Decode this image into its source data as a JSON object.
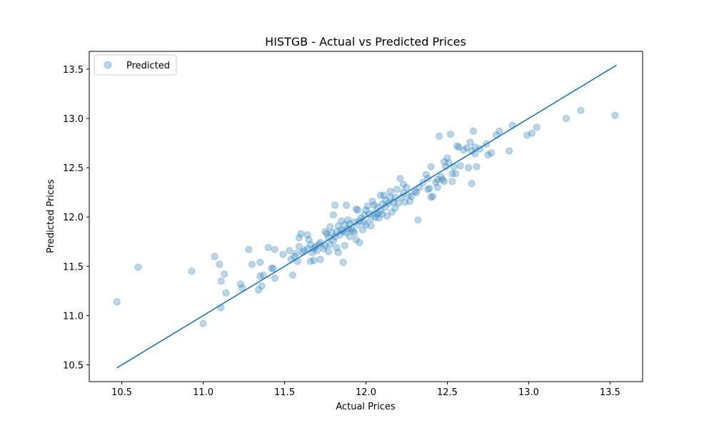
{
  "chart_data": {
    "type": "scatter",
    "title": "HISTGB - Actual vs Predicted Prices",
    "xlabel": "Actual Prices",
    "ylabel": "Predicted Prices",
    "xlim": [
      10.3,
      13.7
    ],
    "ylim": [
      10.33,
      13.68
    ],
    "xticks": [
      "10.5",
      "11.0",
      "11.5",
      "12.0",
      "12.5",
      "13.0",
      "13.5"
    ],
    "yticks": [
      "10.5",
      "11.0",
      "11.5",
      "12.0",
      "12.5",
      "13.0",
      "13.5"
    ],
    "legend": {
      "position": "top-left",
      "entries": [
        "Predicted"
      ]
    },
    "grid": false,
    "colors": {
      "points": "#1f77b4",
      "line": "#1f77b4"
    },
    "series": [
      {
        "name": "Predicted",
        "kind": "scatter",
        "points": [
          [
            10.47,
            11.14
          ],
          [
            10.6,
            11.49
          ],
          [
            10.93,
            11.45
          ],
          [
            11.0,
            10.92
          ],
          [
            11.07,
            11.6
          ],
          [
            11.1,
            11.52
          ],
          [
            11.11,
            11.35
          ],
          [
            11.13,
            11.42
          ],
          [
            11.14,
            11.23
          ],
          [
            11.11,
            11.08
          ],
          [
            11.23,
            11.32
          ],
          [
            11.24,
            11.28
          ],
          [
            11.28,
            11.67
          ],
          [
            11.3,
            11.52
          ],
          [
            11.34,
            11.26
          ],
          [
            11.35,
            11.4
          ],
          [
            11.36,
            11.3
          ],
          [
            11.37,
            11.41
          ],
          [
            11.35,
            11.54
          ],
          [
            11.4,
            11.69
          ],
          [
            11.42,
            11.48
          ],
          [
            11.43,
            11.48
          ],
          [
            11.44,
            11.67
          ],
          [
            11.44,
            11.38
          ],
          [
            11.49,
            11.62
          ],
          [
            11.53,
            11.66
          ],
          [
            11.54,
            11.57
          ],
          [
            11.55,
            11.41
          ],
          [
            11.56,
            11.6
          ],
          [
            11.57,
            11.63
          ],
          [
            11.58,
            11.55
          ],
          [
            11.59,
            11.79
          ],
          [
            11.59,
            11.7
          ],
          [
            11.6,
            11.83
          ],
          [
            11.61,
            11.64
          ],
          [
            11.62,
            11.66
          ],
          [
            11.64,
            11.68
          ],
          [
            11.64,
            11.82
          ],
          [
            11.65,
            11.77
          ],
          [
            11.66,
            11.55
          ],
          [
            11.66,
            11.72
          ],
          [
            11.67,
            11.64
          ],
          [
            11.68,
            11.68
          ],
          [
            11.68,
            11.56
          ],
          [
            11.69,
            11.7
          ],
          [
            11.7,
            11.66
          ],
          [
            11.71,
            11.72
          ],
          [
            11.72,
            11.57
          ],
          [
            11.72,
            11.74
          ],
          [
            11.74,
            11.68
          ],
          [
            11.75,
            11.71
          ],
          [
            11.75,
            11.85
          ],
          [
            11.76,
            11.83
          ],
          [
            11.77,
            11.65
          ],
          [
            11.77,
            11.79
          ],
          [
            11.78,
            11.72
          ],
          [
            11.78,
            11.9
          ],
          [
            11.79,
            11.84
          ],
          [
            11.8,
            12.02
          ],
          [
            11.8,
            11.76
          ],
          [
            11.81,
            12.12
          ],
          [
            11.81,
            11.8
          ],
          [
            11.82,
            11.85
          ],
          [
            11.82,
            11.69
          ],
          [
            11.83,
            11.91
          ],
          [
            11.83,
            11.64
          ],
          [
            11.84,
            11.82
          ],
          [
            11.85,
            11.87
          ],
          [
            11.85,
            11.96
          ],
          [
            11.86,
            11.54
          ],
          [
            11.86,
            11.85
          ],
          [
            11.87,
            11.92
          ],
          [
            11.87,
            11.71
          ],
          [
            11.88,
            12.12
          ],
          [
            11.88,
            11.84
          ],
          [
            11.89,
            11.88
          ],
          [
            11.89,
            11.97
          ],
          [
            11.9,
            11.93
          ],
          [
            11.9,
            11.8
          ],
          [
            11.91,
            11.88
          ],
          [
            11.92,
            11.86
          ],
          [
            11.93,
            11.95
          ],
          [
            11.93,
            11.84
          ],
          [
            11.94,
            12.08
          ],
          [
            11.94,
            11.77
          ],
          [
            11.95,
            11.92
          ],
          [
            11.95,
            12.07
          ],
          [
            11.96,
            11.96
          ],
          [
            11.96,
            11.74
          ],
          [
            11.97,
            11.99
          ],
          [
            11.98,
            11.87
          ],
          [
            11.99,
            12.02
          ],
          [
            11.99,
            11.95
          ],
          [
            12.0,
            12.07
          ],
          [
            12.0,
            11.92
          ],
          [
            12.01,
            12.11
          ],
          [
            12.02,
            12.03
          ],
          [
            12.03,
            11.98
          ],
          [
            12.03,
            11.91
          ],
          [
            12.04,
            12.16
          ],
          [
            12.05,
            12.04
          ],
          [
            12.05,
            12.12
          ],
          [
            12.06,
            12.0
          ],
          [
            12.07,
            12.1
          ],
          [
            12.07,
            12.03
          ],
          [
            12.08,
            11.99
          ],
          [
            12.09,
            12.06
          ],
          [
            12.09,
            12.22
          ],
          [
            12.1,
            12.13
          ],
          [
            12.1,
            12.03
          ],
          [
            12.11,
            12.22
          ],
          [
            12.12,
            12.1
          ],
          [
            12.12,
            12.17
          ],
          [
            12.13,
            12.01
          ],
          [
            12.14,
            12.14
          ],
          [
            12.15,
            12.2
          ],
          [
            12.15,
            12.26
          ],
          [
            12.16,
            12.05
          ],
          [
            12.17,
            12.15
          ],
          [
            12.18,
            12.2
          ],
          [
            12.18,
            12.09
          ],
          [
            12.19,
            12.28
          ],
          [
            12.2,
            12.14
          ],
          [
            12.21,
            12.39
          ],
          [
            12.22,
            12.2
          ],
          [
            12.23,
            12.25
          ],
          [
            12.23,
            12.33
          ],
          [
            12.24,
            12.15
          ],
          [
            12.25,
            12.3
          ],
          [
            12.26,
            12.22
          ],
          [
            12.27,
            12.16
          ],
          [
            12.28,
            12.21
          ],
          [
            12.3,
            12.26
          ],
          [
            12.31,
            12.25
          ],
          [
            12.32,
            11.97
          ],
          [
            12.33,
            12.3
          ],
          [
            12.35,
            12.35
          ],
          [
            12.37,
            12.43
          ],
          [
            12.38,
            12.39
          ],
          [
            12.38,
            12.28
          ],
          [
            12.39,
            12.29
          ],
          [
            12.4,
            12.2
          ],
          [
            12.4,
            12.51
          ],
          [
            12.41,
            12.21
          ],
          [
            12.43,
            12.35
          ],
          [
            12.44,
            12.38
          ],
          [
            12.44,
            12.3
          ],
          [
            12.45,
            12.82
          ],
          [
            12.46,
            12.41
          ],
          [
            12.47,
            12.38
          ],
          [
            12.48,
            12.56
          ],
          [
            12.48,
            12.36
          ],
          [
            12.49,
            12.51
          ],
          [
            12.5,
            12.6
          ],
          [
            12.51,
            12.55
          ],
          [
            12.52,
            12.84
          ],
          [
            12.53,
            12.44
          ],
          [
            12.53,
            12.36
          ],
          [
            12.54,
            12.51
          ],
          [
            12.55,
            12.44
          ],
          [
            12.56,
            12.72
          ],
          [
            12.57,
            12.71
          ],
          [
            12.58,
            12.52
          ],
          [
            12.6,
            12.68
          ],
          [
            12.62,
            12.7
          ],
          [
            12.63,
            12.5
          ],
          [
            12.64,
            12.76
          ],
          [
            12.65,
            12.67
          ],
          [
            12.65,
            12.34
          ],
          [
            12.66,
            12.87
          ],
          [
            12.67,
            12.71
          ],
          [
            12.67,
            12.64
          ],
          [
            12.68,
            12.51
          ],
          [
            12.7,
            12.69
          ],
          [
            12.74,
            12.74
          ],
          [
            12.75,
            12.63
          ],
          [
            12.77,
            12.65
          ],
          [
            12.8,
            12.83
          ],
          [
            12.82,
            12.87
          ],
          [
            12.88,
            12.67
          ],
          [
            12.9,
            12.93
          ],
          [
            12.99,
            12.83
          ],
          [
            13.02,
            12.85
          ],
          [
            13.05,
            12.91
          ],
          [
            13.23,
            13.0
          ],
          [
            13.32,
            13.08
          ],
          [
            13.53,
            13.03
          ]
        ]
      },
      {
        "kind": "line",
        "points": [
          [
            10.47,
            10.47
          ],
          [
            13.54,
            13.54
          ]
        ]
      }
    ]
  }
}
